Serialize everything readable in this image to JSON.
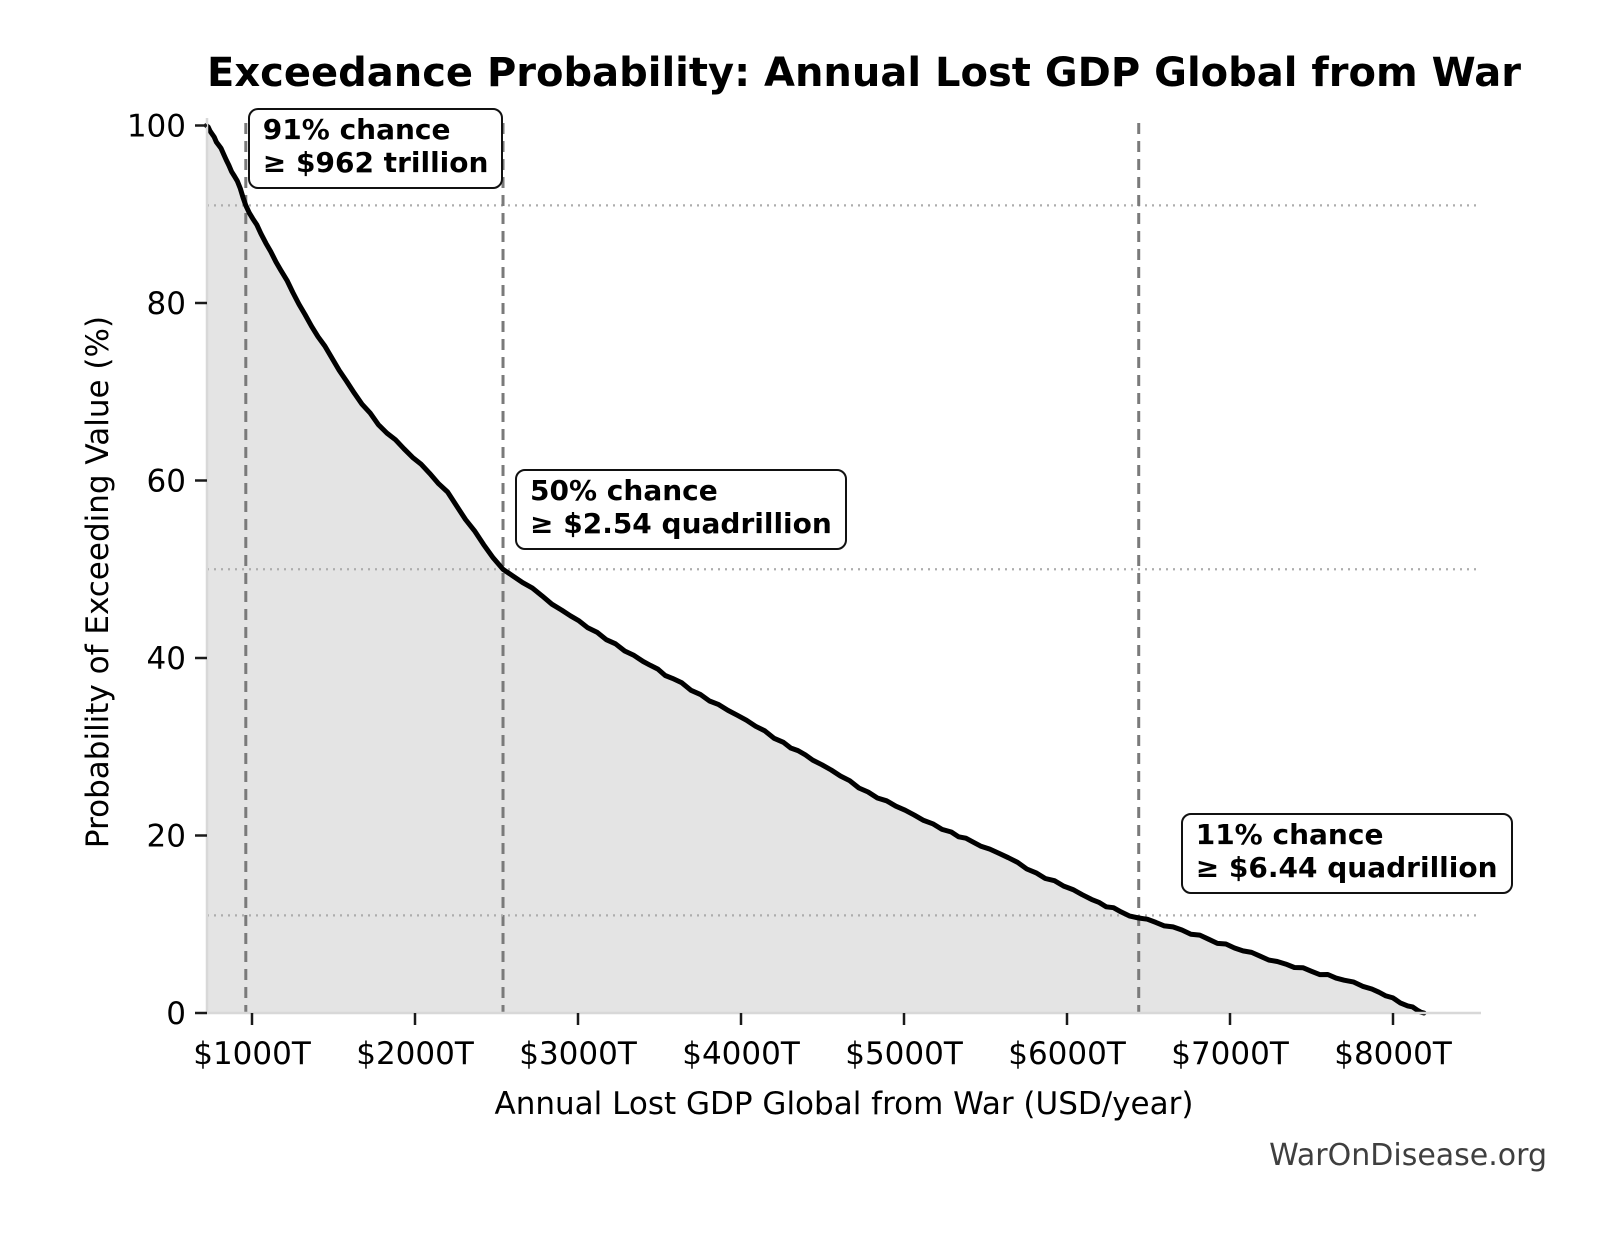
{
  "title": "Exceedance Probability: Annual Lost GDP Global from War",
  "watermark": "WarOnDisease.org",
  "chart_data": {
    "type": "area",
    "title": "Exceedance Probability: Annual Lost GDP Global from War",
    "xlabel": "Annual Lost GDP Global from War (USD/year)",
    "ylabel": "Probability of Exceeding Value (%)",
    "x_unit": "trillions of USD per year",
    "xlim_trillion": [
      724,
      8534
    ],
    "ylim_pct": [
      0,
      100
    ],
    "grid": "reference lines only (dashed vertical + dotted horizontal at annotated points)",
    "legend": null,
    "x_ticks": [
      {
        "value": 1000,
        "label": "$1000T"
      },
      {
        "value": 2000,
        "label": "$2000T"
      },
      {
        "value": 3000,
        "label": "$3000T"
      },
      {
        "value": 4000,
        "label": "$4000T"
      },
      {
        "value": 5000,
        "label": "$5000T"
      },
      {
        "value": 6000,
        "label": "$6000T"
      },
      {
        "value": 7000,
        "label": "$7000T"
      },
      {
        "value": 8000,
        "label": "$8000T"
      }
    ],
    "y_ticks": [
      {
        "value": 0,
        "label": "0"
      },
      {
        "value": 20,
        "label": "20"
      },
      {
        "value": 40,
        "label": "40"
      },
      {
        "value": 60,
        "label": "60"
      },
      {
        "value": 80,
        "label": "80"
      },
      {
        "value": 100,
        "label": "100"
      }
    ],
    "curve_points_value_trillion_vs_probability_pct": [
      [
        720,
        100
      ],
      [
        742,
        99.4
      ],
      [
        768,
        98.7
      ],
      [
        795,
        97.8
      ],
      [
        825,
        96.8
      ],
      [
        858,
        95.5
      ],
      [
        892,
        94.3
      ],
      [
        928,
        92.9
      ],
      [
        962,
        91.0
      ],
      [
        1005,
        89.5
      ],
      [
        1055,
        87.8
      ],
      [
        1115,
        85.8
      ],
      [
        1180,
        83.6
      ],
      [
        1250,
        81.2
      ],
      [
        1325,
        78.7
      ],
      [
        1405,
        76.2
      ],
      [
        1490,
        73.8
      ],
      [
        1580,
        71.2
      ],
      [
        1675,
        68.6
      ],
      [
        1775,
        66.3
      ],
      [
        1880,
        64.6
      ],
      [
        1985,
        62.6
      ],
      [
        2090,
        60.8
      ],
      [
        2200,
        58.7
      ],
      [
        2310,
        55.6
      ],
      [
        2420,
        52.8
      ],
      [
        2540,
        50.0
      ],
      [
        2660,
        48.5
      ],
      [
        2780,
        47.0
      ],
      [
        2900,
        45.4
      ],
      [
        3060,
        43.4
      ],
      [
        3230,
        41.6
      ],
      [
        3400,
        39.6
      ],
      [
        3580,
        37.7
      ],
      [
        3750,
        35.9
      ],
      [
        3920,
        34.1
      ],
      [
        4090,
        32.3
      ],
      [
        4260,
        30.5
      ],
      [
        4440,
        28.5
      ],
      [
        4610,
        26.7
      ],
      [
        4780,
        24.9
      ],
      [
        4950,
        23.3
      ],
      [
        5120,
        21.7
      ],
      [
        5290,
        20.4
      ],
      [
        5470,
        18.8
      ],
      [
        5640,
        17.5
      ],
      [
        5810,
        15.8
      ],
      [
        5980,
        14.3
      ],
      [
        6150,
        12.8
      ],
      [
        6330,
        11.4
      ],
      [
        6440,
        10.7
      ],
      [
        6650,
        9.7
      ],
      [
        6870,
        8.3
      ],
      [
        7080,
        7.0
      ],
      [
        7290,
        5.8
      ],
      [
        7500,
        4.7
      ],
      [
        7700,
        3.7
      ],
      [
        7870,
        2.7
      ],
      [
        8000,
        1.7
      ],
      [
        8090,
        0.8
      ],
      [
        8150,
        0.3
      ],
      [
        8190,
        0.0
      ]
    ],
    "annotations": [
      {
        "probability_pct": 91,
        "value_trillion": 962,
        "line1": "91% chance",
        "line2": "≥ $962 trillion"
      },
      {
        "probability_pct": 50,
        "value_trillion": 2540,
        "line1": "50% chance",
        "line2": "≥ $2.54 quadrillion"
      },
      {
        "probability_pct": 11,
        "value_trillion": 6440,
        "line1": "11% chance",
        "line2": "≥ $6.44 quadrillion"
      }
    ],
    "colors": {
      "curve": "#000000",
      "area_fill": "#e4e4e4",
      "dashed_reference": "#7a7a7a",
      "dotted_reference": "#adadad",
      "spine": "#d8d8d8",
      "tick_mark": "#1a1a1a",
      "text": "#000000",
      "annotation_border": "#111111",
      "watermark": "#3f3f3f"
    }
  }
}
